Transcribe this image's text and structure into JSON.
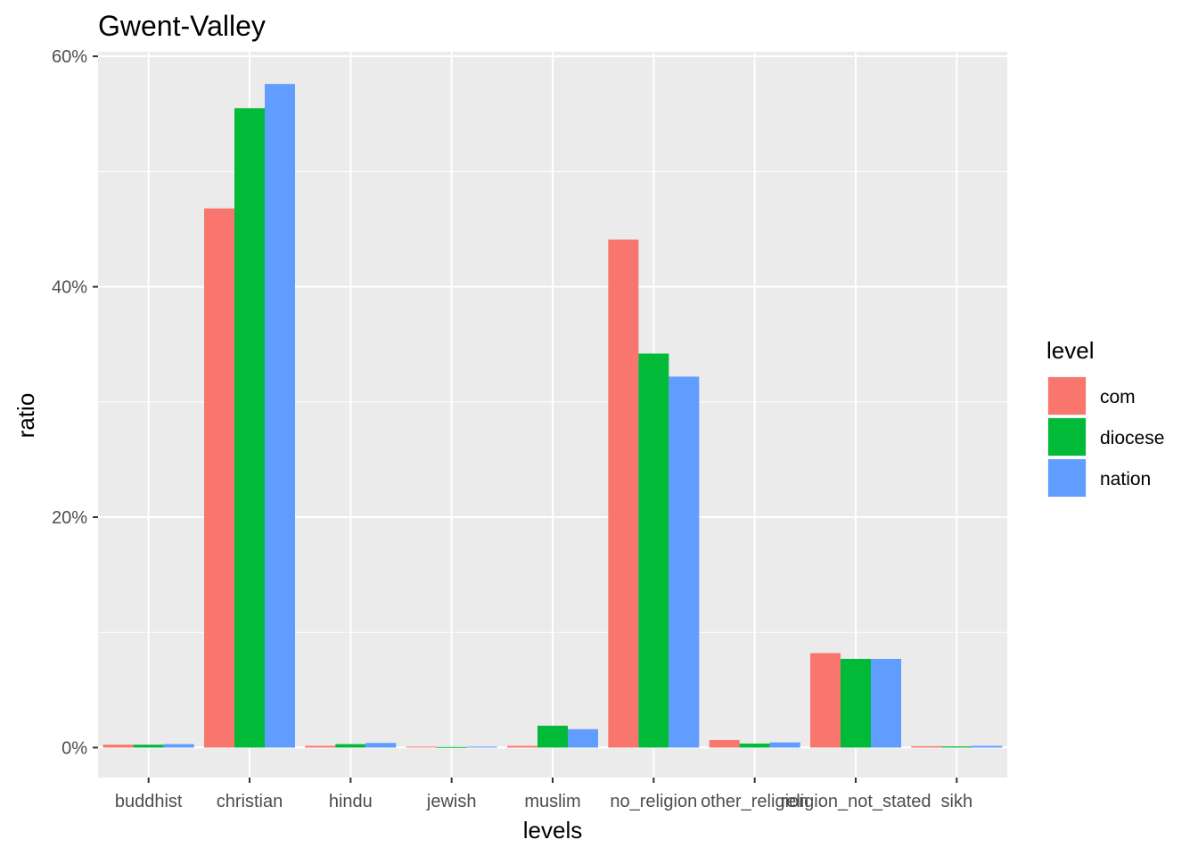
{
  "chart_data": {
    "type": "bar",
    "title": "Gwent-Valley",
    "xlabel": "levels",
    "ylabel": "ratio",
    "ylim": [
      -0.026,
      0.604
    ],
    "yticks": [
      0,
      0.2,
      0.4,
      0.6
    ],
    "ytick_labels": [
      "0%",
      "20%",
      "40%",
      "60%"
    ],
    "categories": [
      "buddhist",
      "christian",
      "hindu",
      "jewish",
      "muslim",
      "no_religion",
      "other_religion",
      "religion_not_stated",
      "sikh"
    ],
    "series": [
      {
        "name": "com",
        "color": "#F8766D",
        "values": [
          0.0025,
          0.468,
          0.0015,
          0.0008,
          0.0015,
          0.441,
          0.0065,
          0.082,
          0.0012
        ]
      },
      {
        "name": "diocese",
        "color": "#00BA38",
        "values": [
          0.0025,
          0.555,
          0.003,
          0.0005,
          0.019,
          0.342,
          0.0035,
          0.077,
          0.001
        ]
      },
      {
        "name": "nation",
        "color": "#619CFF",
        "values": [
          0.003,
          0.576,
          0.004,
          0.0008,
          0.016,
          0.322,
          0.0045,
          0.077,
          0.0015
        ]
      }
    ],
    "legend": {
      "title": "level",
      "placement": "right"
    },
    "grid": true,
    "panel_background": "#EBEBEB",
    "gridline_color": "#FFFFFF"
  }
}
